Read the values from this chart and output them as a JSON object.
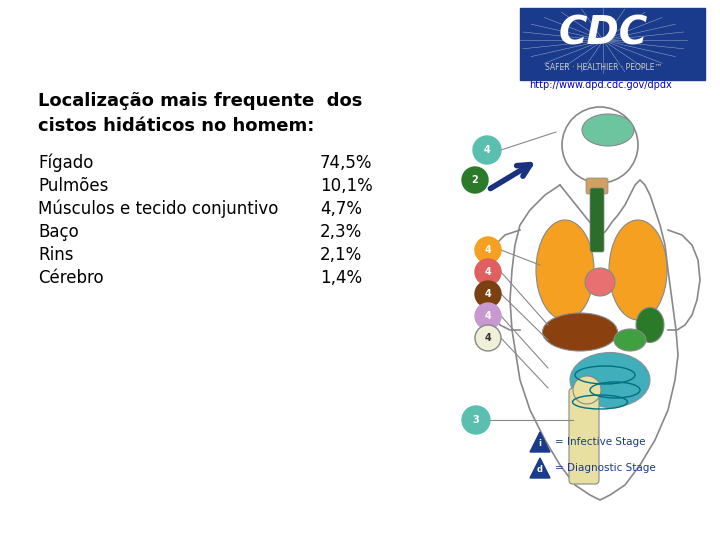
{
  "background_color": "#ffffff",
  "title_line1": "Localização mais frequente  dos",
  "title_line2": "cistos hidáticos no homem:",
  "title_fontsize": 13,
  "title_fontweight": "bold",
  "items": [
    {
      "label": "Fígado",
      "value": "74,5%"
    },
    {
      "label": "Pulmões",
      "value": "10,1%"
    },
    {
      "label": "Músculos e tecido conjuntivo",
      "value": "4,7%"
    },
    {
      "label": "Baço",
      "value": "2,3%"
    },
    {
      "label": "Rins",
      "value": "2,1%"
    },
    {
      "label": "Cérebro",
      "value": "1,4%"
    }
  ],
  "items_fontsize": 12,
  "text_color": "#000000",
  "cdc_blue": "#1a3a8c",
  "url_color": "#0000cc",
  "arrow_color": "#1a3080"
}
